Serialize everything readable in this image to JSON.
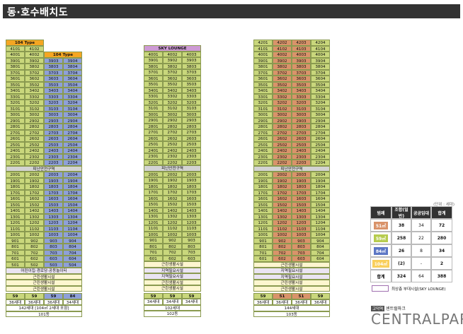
{
  "title": "동·호수배치도",
  "unit_note": "(단위 : 세대)",
  "colors": {
    "green": "#c9d77c",
    "blue": "#8ea0d8",
    "orange": "#d9936a",
    "gray": "#d3d3d3",
    "lavender": "#eae4f2",
    "cream": "#fdf6cf",
    "white": "#ffffff",
    "orange_header": "#f5a623",
    "sky": "#cd9ad4",
    "legend_yellow": "#f9cf5b",
    "legend_blue": "#5b76c4",
    "legend_orange": "#d9936a",
    "legend_green": "#b6cc4e"
  },
  "buildings": [
    {
      "name": "101동",
      "summary": "142세대 [104㎡ 2세대 포함]",
      "columns": [
        {
          "type": "green",
          "households": "36세대",
          "footer": "59"
        },
        {
          "type": "green",
          "households": "36세대",
          "footer": "59"
        },
        {
          "type": "blue",
          "households": "36세대",
          "footer": "59"
        },
        {
          "type": "blue",
          "households": "34세대",
          "footer": "84"
        }
      ],
      "top_left_label": "104 Type",
      "top_right_label": "104 Type",
      "upper_rows": [
        [
          "4101",
          "4102",
          "",
          ""
        ],
        [
          "4001",
          "4002",
          "",
          ""
        ],
        [
          "3901",
          "3902",
          "3903",
          "3904"
        ],
        [
          "3801",
          "3802",
          "3803",
          "3804"
        ],
        [
          "3701",
          "3702",
          "3703",
          "3704"
        ],
        [
          "3601",
          "3602",
          "3603",
          "3604"
        ],
        [
          "3501",
          "3502",
          "3503",
          "3504"
        ],
        [
          "3401",
          "3402",
          "3403",
          "3404"
        ],
        [
          "3301",
          "3302",
          "3303",
          "3304"
        ],
        [
          "3201",
          "3202",
          "3203",
          "3204"
        ],
        [
          "3101",
          "3102",
          "3103",
          "3104"
        ],
        [
          "3001",
          "3002",
          "3003",
          "3004"
        ],
        [
          "2901",
          "2902",
          "2903",
          "2904"
        ],
        [
          "2801",
          "2802",
          "2803",
          "2804"
        ],
        [
          "2701",
          "2702",
          "2703",
          "2704"
        ],
        [
          "2601",
          "2602",
          "2603",
          "2604"
        ],
        [
          "2501",
          "2502",
          "2503",
          "2504"
        ],
        [
          "2401",
          "2402",
          "2403",
          "2404"
        ],
        [
          "2301",
          "2302",
          "2303",
          "2304"
        ],
        [
          "2201",
          "2202",
          "2203",
          "2204"
        ]
      ],
      "refuge": "피난안전구역",
      "lower_rows": [
        [
          "2001",
          "2002",
          "2003",
          "2004"
        ],
        [
          "1901",
          "1902",
          "1903",
          "1904"
        ],
        [
          "1801",
          "1802",
          "1803",
          "1804"
        ],
        [
          "1701",
          "1702",
          "1703",
          "1704"
        ],
        [
          "1601",
          "1602",
          "1603",
          "1604"
        ],
        [
          "1501",
          "1502",
          "1503",
          "1504"
        ],
        [
          "1401",
          "1402",
          "1403",
          "1404"
        ],
        [
          "1301",
          "1302",
          "1303",
          "1304"
        ],
        [
          "1201",
          "1202",
          "1203",
          "1204"
        ],
        [
          "1101",
          "1102",
          "1103",
          "1104"
        ],
        [
          "1001",
          "1002",
          "1003",
          "1004"
        ],
        [
          "901",
          "902",
          "903",
          "904"
        ],
        [
          "801",
          "802",
          "803",
          "804"
        ],
        [
          "701",
          "702",
          "703",
          "704"
        ],
        [
          "601",
          "602",
          "603",
          "604"
        ],
        [
          "501",
          "502",
          "503",
          "504"
        ]
      ],
      "facilities": [
        "어린이집·경로당·공동놀이터",
        "근린생활시설",
        "근린생활시설",
        "근린생활시설"
      ]
    },
    {
      "name": "102동",
      "summary": "102세대",
      "columns": [
        {
          "type": "green",
          "households": "34세대",
          "footer": "59"
        },
        {
          "type": "green",
          "households": "34세대",
          "footer": "59"
        },
        {
          "type": "green",
          "households": "34세대",
          "footer": "59"
        }
      ],
      "top_label": "SKY LOUNGE",
      "upper_rows": [
        [
          "4001",
          "4002",
          "4003"
        ],
        [
          "3901",
          "3902",
          "3903"
        ],
        [
          "3801",
          "3802",
          "3803"
        ],
        [
          "3701",
          "3702",
          "3703"
        ],
        [
          "3601",
          "3602",
          "3603"
        ],
        [
          "3501",
          "3502",
          "3503"
        ],
        [
          "3401",
          "3402",
          "3403"
        ],
        [
          "3301",
          "3302",
          "3303"
        ],
        [
          "3201",
          "3202",
          "3203"
        ],
        [
          "3101",
          "3102",
          "3103"
        ],
        [
          "3001",
          "3002",
          "3003"
        ],
        [
          "2901",
          "2902",
          "2903"
        ],
        [
          "2801",
          "2802",
          "2803"
        ],
        [
          "2701",
          "2702",
          "2703"
        ],
        [
          "2601",
          "2602",
          "2603"
        ],
        [
          "2501",
          "2502",
          "2503"
        ],
        [
          "2401",
          "2402",
          "2403"
        ],
        [
          "2301",
          "2302",
          "2303"
        ],
        [
          "2201",
          "2202",
          "2203"
        ]
      ],
      "refuge": "피난안전구역",
      "lower_rows": [
        [
          "2001",
          "2002",
          "2003"
        ],
        [
          "1901",
          "1902",
          "1903"
        ],
        [
          "1801",
          "1802",
          "1803"
        ],
        [
          "1701",
          "1702",
          "1703"
        ],
        [
          "1601",
          "1602",
          "1603"
        ],
        [
          "1501",
          "1502",
          "1503"
        ],
        [
          "1401",
          "1402",
          "1403"
        ],
        [
          "1301",
          "1302",
          "1303"
        ],
        [
          "1201",
          "1202",
          "1203"
        ],
        [
          "1101",
          "1102",
          "1103"
        ],
        [
          "1001",
          "1002",
          "1003"
        ],
        [
          "901",
          "902",
          "903"
        ],
        [
          "801",
          "802",
          "803"
        ],
        [
          "701",
          "702",
          "703"
        ],
        [
          "601",
          "602",
          "603"
        ]
      ],
      "facilities": [
        "근린생활시설",
        "지역필요시설",
        "지역필요시설",
        "근린생활시설",
        "근린생활시설"
      ]
    },
    {
      "name": "103동",
      "summary": "144세대",
      "columns": [
        {
          "type": "green",
          "households": "36세대",
          "footer": "59"
        },
        {
          "type": "orange",
          "households": "36세대",
          "footer": "51"
        },
        {
          "type": "orange",
          "households": "36세대",
          "footer": "51"
        },
        {
          "type": "green",
          "households": "36세대",
          "footer": "59"
        }
      ],
      "upper_rows": [
        [
          "4201",
          "4202",
          "4203",
          "4204"
        ],
        [
          "4101",
          "4102",
          "4103",
          "4104"
        ],
        [
          "4001",
          "4002",
          "4003",
          "4004"
        ],
        [
          "3901",
          "3902",
          "3903",
          "3904"
        ],
        [
          "3801",
          "3802",
          "3803",
          "3804"
        ],
        [
          "3701",
          "3702",
          "3703",
          "3704"
        ],
        [
          "3601",
          "3602",
          "3603",
          "3604"
        ],
        [
          "3501",
          "3502",
          "3503",
          "3504"
        ],
        [
          "3401",
          "3402",
          "3403",
          "3404"
        ],
        [
          "3301",
          "3302",
          "3303",
          "3304"
        ],
        [
          "3201",
          "3202",
          "3203",
          "3204"
        ],
        [
          "3101",
          "3102",
          "3103",
          "3104"
        ],
        [
          "3001",
          "3002",
          "3003",
          "3004"
        ],
        [
          "2901",
          "2902",
          "2903",
          "2904"
        ],
        [
          "2801",
          "2802",
          "2803",
          "2804"
        ],
        [
          "2701",
          "2702",
          "2703",
          "2704"
        ],
        [
          "2601",
          "2602",
          "2603",
          "2604"
        ],
        [
          "2501",
          "2502",
          "2503",
          "2504"
        ],
        [
          "2401",
          "2402",
          "2403",
          "2404"
        ],
        [
          "2301",
          "2302",
          "2303",
          "2304"
        ],
        [
          "2201",
          "2202",
          "2203",
          "2204"
        ]
      ],
      "refuge": "피난안전구역",
      "lower_rows": [
        [
          "2001",
          "2002",
          "2003",
          "2004"
        ],
        [
          "1901",
          "1902",
          "1903",
          "1904"
        ],
        [
          "1801",
          "1802",
          "1803",
          "1804"
        ],
        [
          "1701",
          "1702",
          "1703",
          "1704"
        ],
        [
          "1601",
          "1602",
          "1603",
          "1604"
        ],
        [
          "1501",
          "1502",
          "1503",
          "1504"
        ],
        [
          "1401",
          "1402",
          "1403",
          "1404"
        ],
        [
          "1301",
          "1302",
          "1303",
          "1304"
        ],
        [
          "1201",
          "1202",
          "1203",
          "1204"
        ],
        [
          "1101",
          "1102",
          "1103",
          "1104"
        ],
        [
          "1001",
          "1002",
          "1003",
          "1004"
        ],
        [
          "901",
          "902",
          "903",
          "904"
        ],
        [
          "801",
          "802",
          "803",
          "804"
        ],
        [
          "701",
          "702",
          "703",
          "704"
        ],
        [
          "601",
          "602",
          "603",
          "604"
        ]
      ],
      "facilities": [
        "근린생활시설",
        "지역필요시설",
        "지역필요시설",
        "근린생활시설",
        "근린생활시설"
      ]
    }
  ],
  "legend": {
    "headers": [
      "범례",
      "조합(일반)",
      "공공임대",
      "합계"
    ],
    "rows": [
      {
        "label": "51㎡",
        "color": "legend_orange",
        "values": [
          "38",
          "34",
          "72"
        ]
      },
      {
        "label": "59㎡",
        "color": "legend_green",
        "values": [
          "258",
          "22",
          "280"
        ]
      },
      {
        "label": "84㎡",
        "color": "legend_blue",
        "values": [
          "26",
          "8",
          "34"
        ]
      },
      {
        "label": "104㎡",
        "color": "legend_yellow",
        "values": [
          "(2)",
          "-",
          "2"
        ]
      },
      {
        "label": "합계",
        "color": "white",
        "values": [
          "324",
          "64",
          "388"
        ]
      }
    ],
    "sky_note": "최상층 부대시설(SKY LOUNGE)"
  },
  "logo": {
    "small_box": "고덕역",
    "small_text": "센트럴파크",
    "big": "CENTRALPARK"
  }
}
